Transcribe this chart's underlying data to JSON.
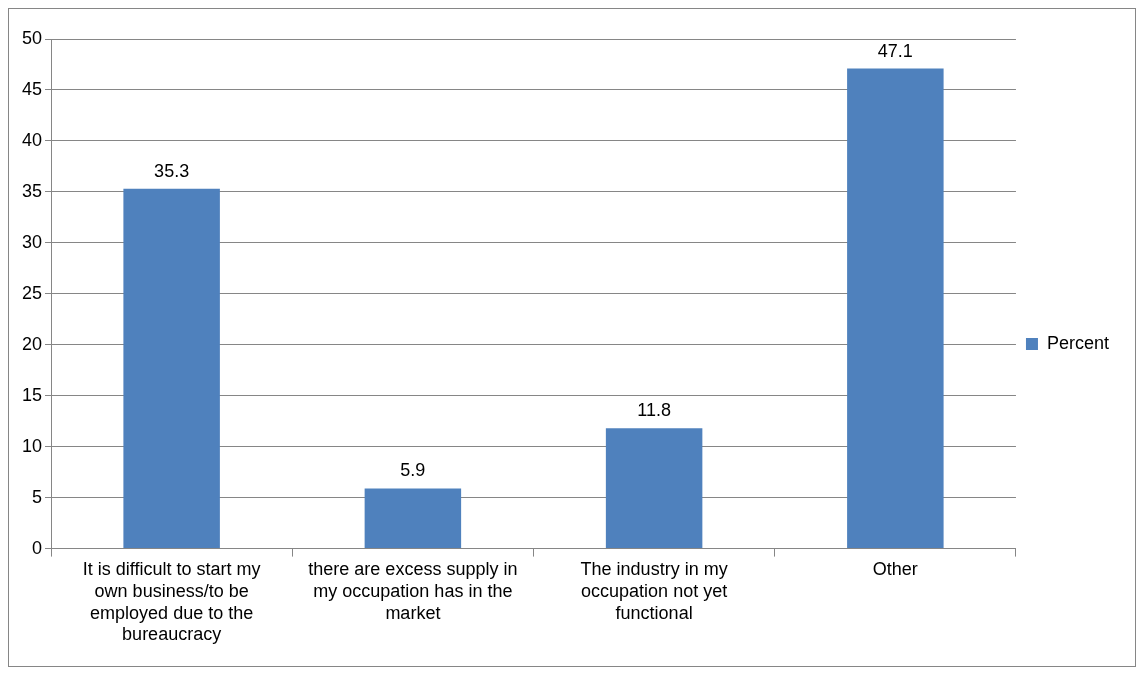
{
  "chart_data": {
    "type": "bar",
    "categories": [
      "It is difficult to start my own business/to be employed due to the bureaucracy",
      "there are excess supply in my occupation has in the market",
      "The industry in my occupation not yet functional",
      "Other"
    ],
    "series": [
      {
        "name": "Percent",
        "color": "#4f81bd",
        "values": [
          35.3,
          5.9,
          11.8,
          47.1
        ]
      }
    ],
    "ylim": [
      0,
      50
    ],
    "yticks": [
      0,
      5,
      10,
      15,
      20,
      25,
      30,
      35,
      40,
      45,
      50
    ],
    "grid": "y",
    "legend": "right",
    "data_labels": true
  }
}
